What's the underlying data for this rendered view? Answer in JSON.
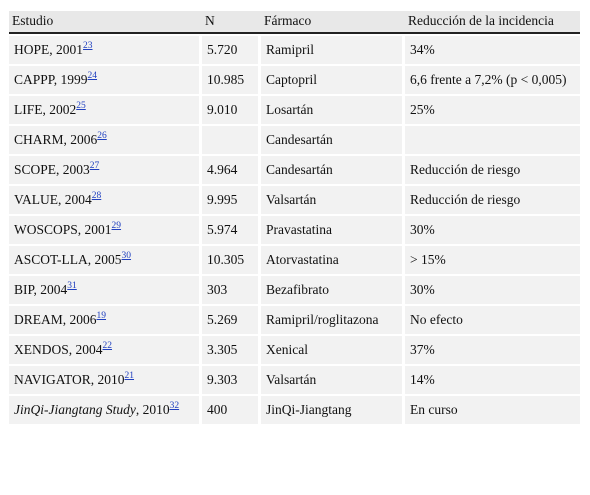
{
  "table": {
    "headers": [
      "Estudio",
      "N",
      "Fármaco",
      "Reducción de la incidencia"
    ],
    "rows": [
      {
        "study": "HOPE, 2001",
        "ref": "23",
        "n": "5.720",
        "drug": "Ramipril",
        "reduction": "34%"
      },
      {
        "study": "CAPPP, 1999",
        "ref": "24",
        "n": "10.985",
        "drug": "Captopril",
        "reduction": "6,6 frente a 7,2% (p < 0,005)"
      },
      {
        "study": "LIFE, 2002",
        "ref": "25",
        "n": "9.010",
        "drug": "Losartán",
        "reduction": "25%"
      },
      {
        "study": "CHARM, 2006",
        "ref": "26",
        "n": "",
        "drug": "Candesartán",
        "reduction": ""
      },
      {
        "study": "SCOPE, 2003",
        "ref": "27",
        "n": "4.964",
        "drug": "Candesartán",
        "reduction": "Reducción de riesgo"
      },
      {
        "study": "VALUE, 2004",
        "ref": "28",
        "n": "9.995",
        "drug": "Valsartán",
        "reduction": "Reducción de riesgo"
      },
      {
        "study": "WOSCOPS, 2001",
        "ref": "29",
        "n": "5.974",
        "drug": "Pravastatina",
        "reduction": "30%"
      },
      {
        "study": "ASCOT-LLA, 2005",
        "ref": "30",
        "n": "10.305",
        "drug": "Atorvastatina",
        "reduction": "> 15%"
      },
      {
        "study": "BIP, 2004",
        "ref": "31",
        "n": "303",
        "drug": "Bezafibrato",
        "reduction": "30%"
      },
      {
        "study": "DREAM, 2006",
        "ref": "19",
        "n": "5.269",
        "drug": "Ramipril/roglitazona",
        "reduction": "No efecto"
      },
      {
        "study": "XENDOS, 2004",
        "ref": "22",
        "n": "3.305",
        "drug": "Xenical",
        "reduction": "37%"
      },
      {
        "study": "NAVIGATOR, 2010",
        "ref": "21",
        "n": "9.303",
        "drug": "Valsartán",
        "reduction": "14%"
      },
      {
        "study_italic": "JinQi-Jiangtang Study",
        "study": ", 2010",
        "ref": "32",
        "n": "400",
        "drug": "JinQi-Jiangtang",
        "reduction": "En curso"
      }
    ]
  }
}
